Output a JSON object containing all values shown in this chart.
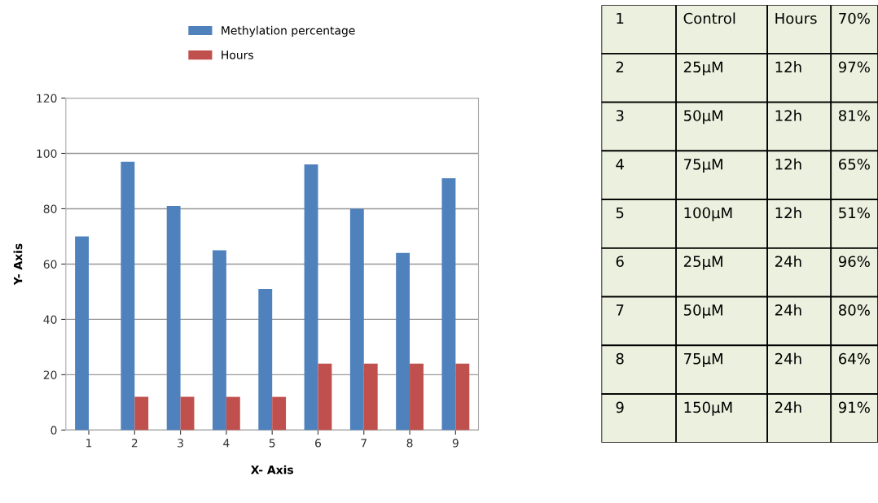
{
  "chart_data": {
    "type": "bar",
    "xlabel": "X- Axis",
    "ylabel": "Y- Axis",
    "categories": [
      "1",
      "2",
      "3",
      "4",
      "5",
      "6",
      "7",
      "8",
      "9"
    ],
    "series": [
      {
        "name": "Methylation percentage",
        "color": "#4f81bd",
        "values": [
          70,
          97,
          81,
          65,
          51,
          96,
          80,
          64,
          91
        ]
      },
      {
        "name": "Hours",
        "color": "#c0504d",
        "values": [
          null,
          12,
          12,
          12,
          12,
          24,
          24,
          24,
          24
        ]
      }
    ],
    "ylim": [
      0,
      120
    ],
    "yticks": [
      0,
      20,
      40,
      60,
      80,
      100,
      120
    ],
    "grid": "y",
    "legend": "top",
    "annotations": [
      "1",
      "Control",
      "Hours",
      "70%",
      "2",
      "25µM",
      "12h",
      "97%",
      "3",
      "50µM",
      "12h",
      "81%",
      "4",
      "75µM",
      "12h",
      "65%",
      "5",
      "100µM",
      "12h",
      "51%",
      "6",
      "25µM",
      "24h",
      "96%",
      "7",
      "50µM",
      "24h",
      "80%",
      "8",
      "75µM",
      "24h",
      "64%",
      "9",
      "150µM",
      "24h",
      "91%"
    ]
  }
}
